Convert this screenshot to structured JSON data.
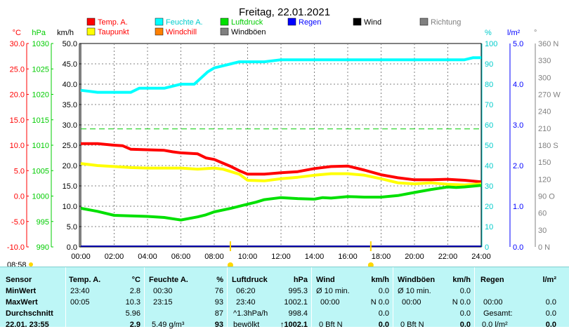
{
  "chart_data": {
    "type": "line",
    "title": "Freitag, 22.01.2021",
    "xlabel": "",
    "x_ticks": [
      "00:00",
      "02:00",
      "04:00",
      "06:00",
      "08:00",
      "10:00",
      "12:00",
      "14:00",
      "16:00",
      "18:00",
      "20:00",
      "22:00",
      "24:00"
    ],
    "xlim": [
      0,
      24
    ],
    "axes": {
      "temp": {
        "unit": "°C",
        "range": [
          -10,
          30
        ],
        "ticks": [
          "30.0",
          "25.0",
          "20.0",
          "15.0",
          "10.0",
          "5.0",
          "0.0",
          "-5.0",
          "-10.0"
        ]
      },
      "pressure": {
        "unit": "hPa",
        "range": [
          990,
          1030
        ],
        "ticks": [
          "1030",
          "1025",
          "1020",
          "1015",
          "1010",
          "1005",
          "1000",
          "995",
          "990"
        ]
      },
      "wind": {
        "unit": "km/h",
        "range": [
          0,
          50
        ],
        "ticks": [
          "50.0",
          "45.0",
          "40.0",
          "35.0",
          "30.0",
          "25.0",
          "20.0",
          "15.0",
          "10.0",
          "5.0",
          "0.0"
        ]
      },
      "humidity": {
        "unit": "%",
        "range": [
          0,
          100
        ],
        "ticks": [
          "100",
          "90",
          "80",
          "70",
          "60",
          "50",
          "40",
          "30",
          "20",
          "10",
          "0"
        ]
      },
      "rain": {
        "unit": "l/m²",
        "range": [
          0,
          5
        ],
        "ticks": [
          "5.0",
          "4.0",
          "3.0",
          "2.0",
          "1.0",
          "0.0"
        ]
      },
      "direction": {
        "unit": "°",
        "range": [
          0,
          360
        ],
        "ticks": [
          "360 N",
          "330",
          "300",
          "270 W",
          "240",
          "210",
          "180 S",
          "150",
          "120",
          "90 O",
          "60",
          "30",
          "0 N"
        ]
      }
    },
    "legend": [
      {
        "name": "Temp. A.",
        "color": "#ff0000"
      },
      {
        "name": "Feuchte A.",
        "color": "#00ffff"
      },
      {
        "name": "Luftdruck",
        "color": "#00e000"
      },
      {
        "name": "Regen",
        "color": "#0000ff"
      },
      {
        "name": "Wind",
        "color": "#000000"
      },
      {
        "name": "Richtung",
        "color": "#808080"
      },
      {
        "name": "Taupunkt",
        "color": "#ffff00"
      },
      {
        "name": "Windchill",
        "color": "#ff8000"
      },
      {
        "name": "Windböen",
        "color": "#808080"
      }
    ],
    "series": [
      {
        "name": "Temp. A.",
        "axis": "temp",
        "color": "#ff0000",
        "x": [
          0,
          1,
          2,
          2.5,
          3,
          4,
          5,
          5.5,
          6,
          7,
          7.5,
          8,
          8.5,
          9,
          9.5,
          10,
          11,
          12,
          13,
          14,
          15,
          16,
          17,
          18,
          19,
          20,
          21,
          22,
          23,
          24
        ],
        "y": [
          10.3,
          10.3,
          10.0,
          9.9,
          9.2,
          9.1,
          9.0,
          8.7,
          8.5,
          8.3,
          7.5,
          7.2,
          6.5,
          5.8,
          5.0,
          4.3,
          4.3,
          4.6,
          4.8,
          5.4,
          5.8,
          5.9,
          5.1,
          4.2,
          3.6,
          3.2,
          3.2,
          3.3,
          3.1,
          2.8
        ]
      },
      {
        "name": "Taupunkt",
        "axis": "temp",
        "color": "#ffff00",
        "x": [
          0,
          1,
          2,
          3,
          4,
          5,
          6,
          7,
          8,
          8.5,
          9,
          9.5,
          10,
          11,
          12,
          13,
          14,
          15,
          16,
          17,
          18,
          19,
          20,
          21,
          22,
          23,
          24
        ],
        "y": [
          6.4,
          6.0,
          5.8,
          5.6,
          5.5,
          5.5,
          5.5,
          5.3,
          5.5,
          5.3,
          4.8,
          4.3,
          3.1,
          3.0,
          3.4,
          3.7,
          4.1,
          4.4,
          4.4,
          4.1,
          3.4,
          2.6,
          2.4,
          2.6,
          2.3,
          2.2,
          2.4
        ]
      },
      {
        "name": "Feuchte A.",
        "axis": "humidity",
        "color": "#00ffff",
        "x": [
          0,
          1,
          2,
          3,
          3.5,
          4,
          5,
          6,
          6.8,
          7.2,
          7.6,
          8,
          8.5,
          9,
          9.5,
          10,
          11,
          12,
          13,
          14,
          15,
          16,
          17,
          18,
          19,
          20,
          21,
          22,
          23,
          23.5,
          24
        ],
        "y": [
          77,
          76,
          76,
          76,
          78,
          78,
          78,
          80,
          80,
          83,
          86,
          88,
          89,
          90,
          91,
          91,
          91,
          92,
          92,
          92,
          92,
          92,
          92,
          92,
          92,
          92,
          92,
          92,
          92,
          93,
          93
        ]
      },
      {
        "name": "Luftdruck",
        "axis": "pressure",
        "color": "#00e000",
        "x": [
          0,
          1,
          2,
          3,
          4,
          5,
          6,
          7,
          7.5,
          8,
          9,
          10,
          10.5,
          11,
          12,
          13,
          14,
          14.5,
          15,
          16,
          17,
          18,
          19,
          20,
          21,
          22,
          22.5,
          23,
          24
        ],
        "y": [
          997.6,
          997.0,
          996.2,
          996.1,
          996.0,
          995.8,
          995.3,
          995.9,
          996.3,
          996.9,
          997.6,
          998.4,
          998.8,
          999.3,
          999.7,
          999.5,
          999.4,
          999.7,
          999.6,
          999.9,
          999.8,
          999.8,
          1000.1,
          1000.7,
          1001.3,
          1001.8,
          1001.7,
          1001.8,
          1002.1
        ]
      }
    ],
    "reference_lines": [
      {
        "axis": "humidity",
        "value": 58,
        "color": "#00cc00",
        "style": "dashed"
      }
    ],
    "markers": {
      "sunrise": "08:58",
      "sunset": "17:23"
    },
    "grid": true
  },
  "table": {
    "columns": [
      {
        "title": "Sensor"
      },
      {
        "title": "Temp. A.",
        "unit": "°C"
      },
      {
        "title": "Feuchte A.",
        "unit": "%"
      },
      {
        "title": "Luftdruck",
        "unit": "hPa"
      },
      {
        "title": "Wind",
        "unit": "km/h"
      },
      {
        "title": "Windböen",
        "unit": "km/h"
      },
      {
        "title": "Regen",
        "unit": "l/m²"
      }
    ],
    "row_labels": [
      "MinWert",
      "MaxWert",
      "Durchschnitt",
      "22.01. 23:55"
    ],
    "temp": [
      [
        "23:40",
        "2.8"
      ],
      [
        "00:05",
        "10.3"
      ],
      [
        "",
        "5.96"
      ],
      [
        "",
        "2.9"
      ]
    ],
    "humidity": [
      [
        "00:30",
        "76"
      ],
      [
        "23:15",
        "93"
      ],
      [
        "",
        "87"
      ],
      [
        "5.49 g/m³",
        "93"
      ]
    ],
    "pressure": [
      [
        "06:20",
        "995.3"
      ],
      [
        "23:40",
        "1002.1"
      ],
      [
        "^1.3hPa/h",
        "998.4"
      ],
      [
        "bewölkt",
        "↑1002.1"
      ]
    ],
    "wind": [
      [
        "Ø 10 min.",
        "0.0"
      ],
      [
        "00:00",
        "N 0.0"
      ],
      [
        "",
        "0.0"
      ],
      [
        "0 Bft N",
        "0.0"
      ]
    ],
    "gust": [
      [
        "Ø 10 min.",
        "0.0"
      ],
      [
        "00:00",
        "N 0.0"
      ],
      [
        "",
        "0.0"
      ],
      [
        "0 Bft N",
        "0.0"
      ]
    ],
    "rain": [
      [
        "",
        ""
      ],
      [
        "00:00",
        "0.0"
      ],
      [
        "Gesamt:",
        "0.0"
      ],
      [
        "0.0 l/m²",
        "0.0"
      ]
    ]
  }
}
